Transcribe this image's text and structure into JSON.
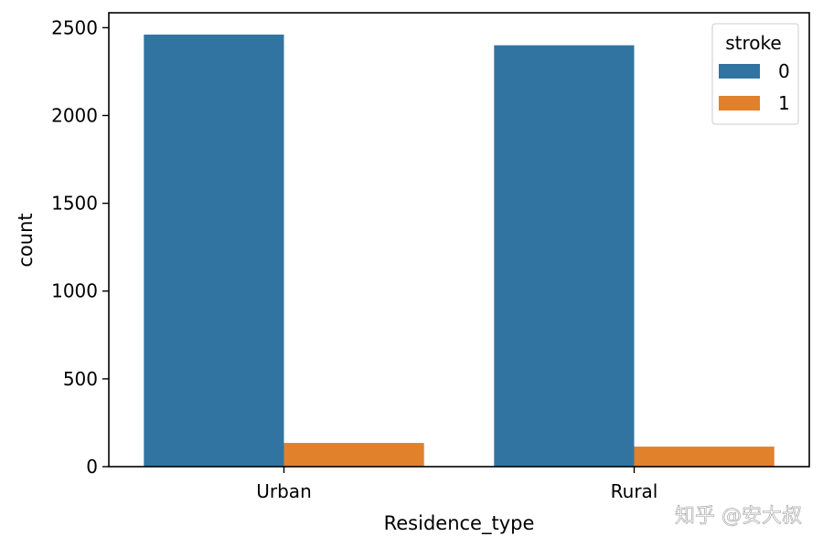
{
  "chart_data": {
    "type": "bar",
    "categories": [
      "Urban",
      "Rural"
    ],
    "series": [
      {
        "name": "0",
        "values": [
          2461,
          2400
        ],
        "color": "#3274a1"
      },
      {
        "name": "1",
        "values": [
          135,
          114
        ],
        "color": "#e1812c"
      }
    ],
    "xlabel": "Residence_type",
    "ylabel": "count",
    "ylim": [
      0,
      2585
    ],
    "yticks": [
      0,
      500,
      1000,
      1500,
      2000,
      2500
    ],
    "legend": {
      "title": "stroke",
      "placement": "top-right"
    },
    "grid": false
  },
  "watermark": "知乎 @安大叔"
}
